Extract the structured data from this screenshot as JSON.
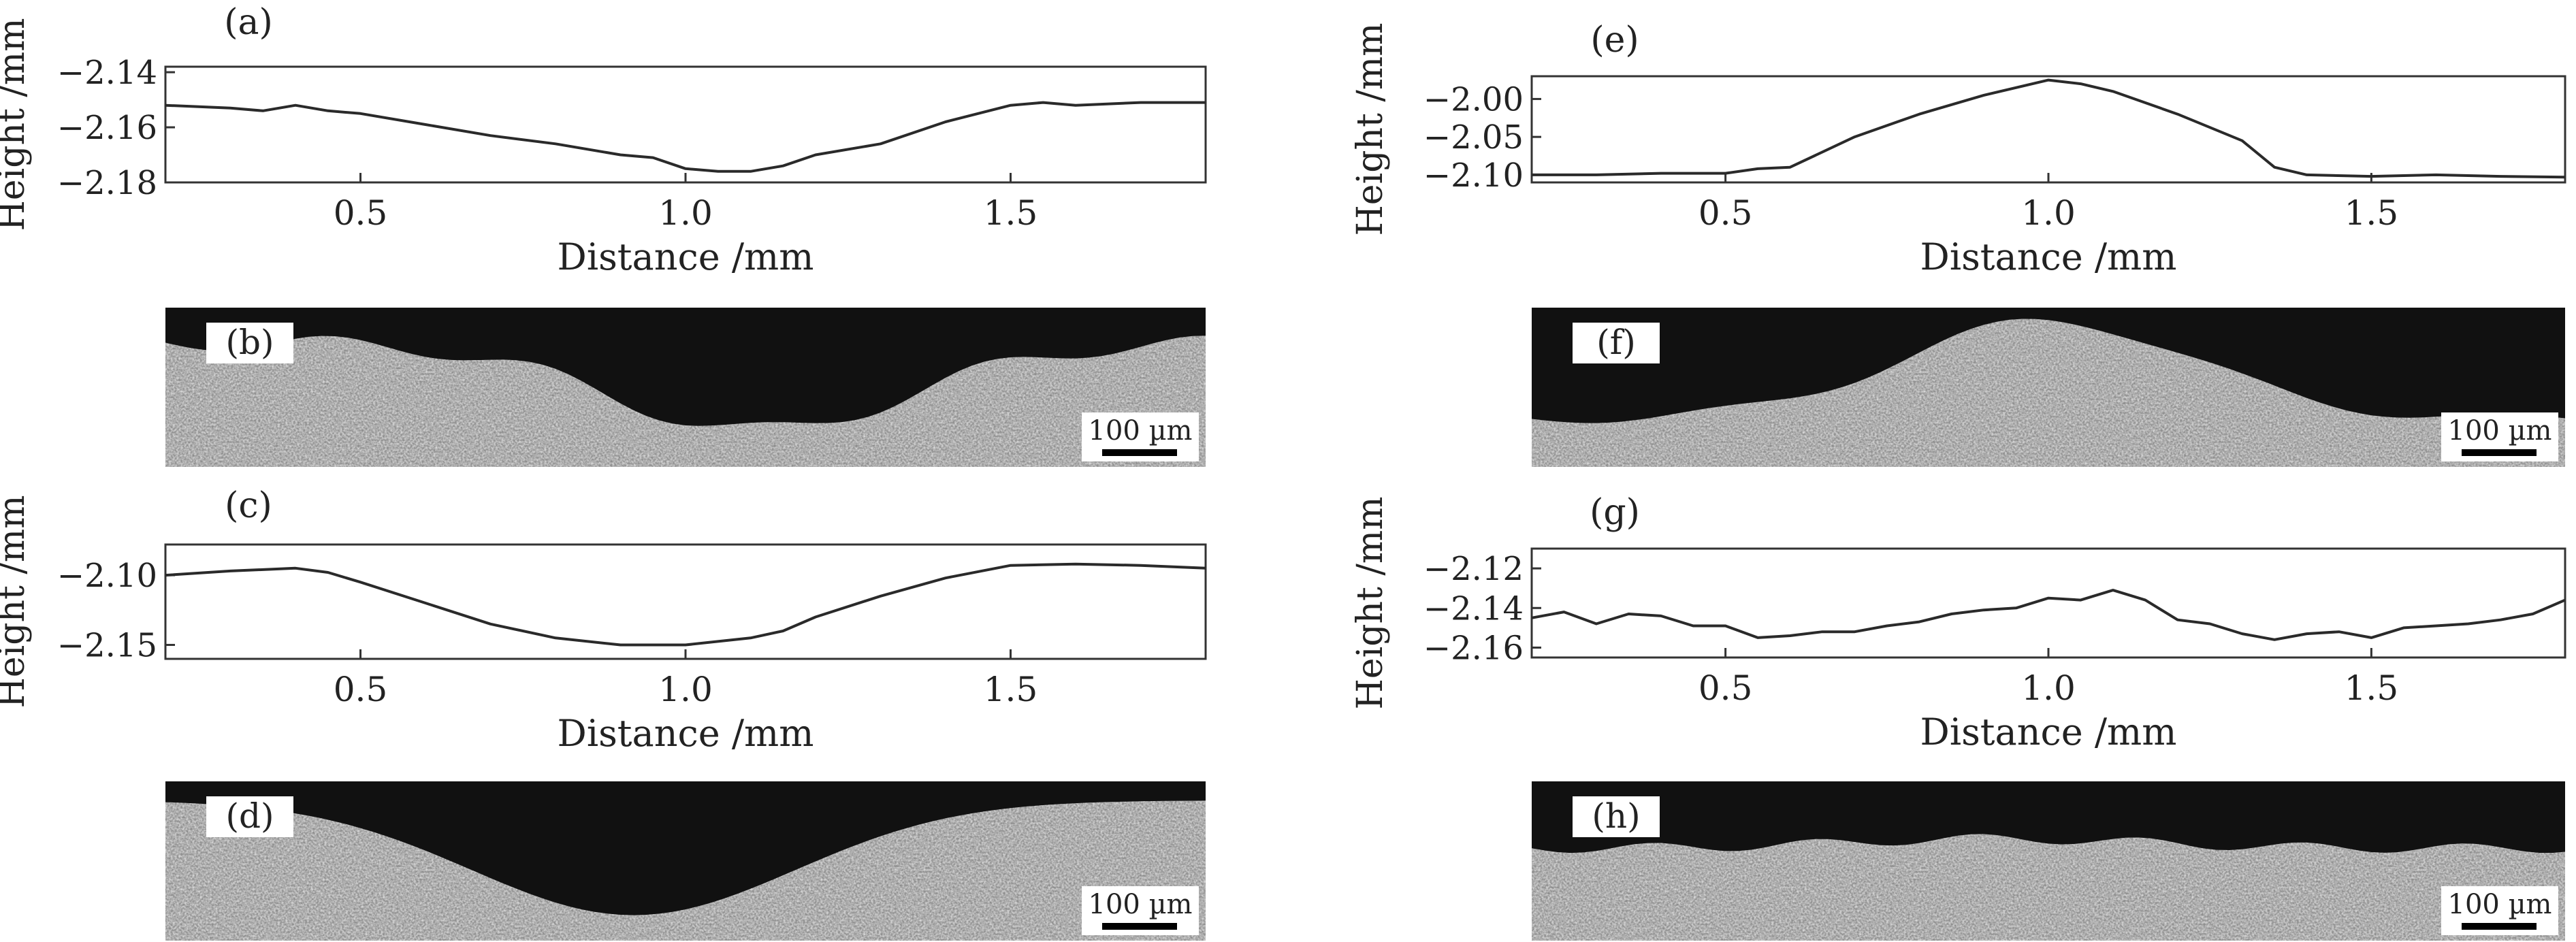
{
  "figure": {
    "panels": [
      {
        "id": "a",
        "label": "(a)",
        "type": "line",
        "xlabel": "Distance /mm",
        "ylabel": "Height /mm",
        "xlim": [
          0.2,
          1.8
        ],
        "ylim": [
          -2.18,
          -2.138
        ],
        "xticks": [
          0.5,
          1.0,
          1.5
        ],
        "yticks": [
          -2.14,
          -2.16,
          -2.18
        ],
        "xtick_labels": [
          "0.5",
          "1.0",
          "1.5"
        ],
        "ytick_labels": [
          "−2.14",
          "−2.16",
          "−2.18"
        ],
        "x": [
          0.2,
          0.3,
          0.35,
          0.4,
          0.45,
          0.5,
          0.6,
          0.7,
          0.8,
          0.9,
          0.95,
          1.0,
          1.05,
          1.1,
          1.15,
          1.2,
          1.3,
          1.4,
          1.5,
          1.55,
          1.6,
          1.7,
          1.8
        ],
        "y": [
          -2.152,
          -2.153,
          -2.154,
          -2.152,
          -2.154,
          -2.155,
          -2.159,
          -2.163,
          -2.166,
          -2.17,
          -2.171,
          -2.175,
          -2.176,
          -2.176,
          -2.174,
          -2.17,
          -2.166,
          -2.158,
          -2.152,
          -2.151,
          -2.152,
          -2.151,
          -2.151
        ]
      },
      {
        "id": "c",
        "label": "(c)",
        "type": "line",
        "xlabel": "Distance /mm",
        "ylabel": "Height /mm",
        "xlim": [
          0.2,
          1.8
        ],
        "ylim": [
          -2.16,
          -2.078
        ],
        "xticks": [
          0.5,
          1.0,
          1.5
        ],
        "yticks": [
          -2.1,
          -2.15
        ],
        "xtick_labels": [
          "0.5",
          "1.0",
          "1.5"
        ],
        "ytick_labels": [
          "−2.10",
          "−2.15"
        ],
        "x": [
          0.2,
          0.3,
          0.4,
          0.45,
          0.5,
          0.6,
          0.7,
          0.8,
          0.9,
          1.0,
          1.1,
          1.15,
          1.2,
          1.3,
          1.4,
          1.5,
          1.6,
          1.7,
          1.8
        ],
        "y": [
          -2.1,
          -2.097,
          -2.095,
          -2.098,
          -2.105,
          -2.12,
          -2.135,
          -2.145,
          -2.15,
          -2.15,
          -2.145,
          -2.14,
          -2.13,
          -2.115,
          -2.102,
          -2.093,
          -2.092,
          -2.093,
          -2.095
        ]
      },
      {
        "id": "e",
        "label": "(e)",
        "type": "line",
        "xlabel": "Distance /mm",
        "ylabel": "Height /mm",
        "xlim": [
          0.2,
          1.8
        ],
        "ylim": [
          -2.11,
          -1.97
        ],
        "xticks": [
          0.5,
          1.0,
          1.5
        ],
        "yticks": [
          -2.0,
          -2.05,
          -2.1
        ],
        "xtick_labels": [
          "0.5",
          "1.0",
          "1.5"
        ],
        "ytick_labels": [
          "−2.00",
          "−2.05",
          "−2.10"
        ],
        "x": [
          0.2,
          0.3,
          0.4,
          0.5,
          0.55,
          0.6,
          0.7,
          0.8,
          0.9,
          1.0,
          1.05,
          1.1,
          1.2,
          1.3,
          1.35,
          1.4,
          1.5,
          1.6,
          1.7,
          1.8
        ],
        "y": [
          -2.1,
          -2.1,
          -2.098,
          -2.098,
          -2.092,
          -2.09,
          -2.05,
          -2.02,
          -1.995,
          -1.975,
          -1.98,
          -1.99,
          -2.02,
          -2.055,
          -2.09,
          -2.1,
          -2.102,
          -2.1,
          -2.102,
          -2.103
        ]
      },
      {
        "id": "g",
        "label": "(g)",
        "type": "line",
        "xlabel": "Distance /mm",
        "ylabel": "Height /mm",
        "xlim": [
          0.2,
          1.8
        ],
        "ylim": [
          -2.165,
          -2.11
        ],
        "xticks": [
          0.5,
          1.0,
          1.5
        ],
        "yticks": [
          -2.12,
          -2.14,
          -2.16
        ],
        "xtick_labels": [
          "0.5",
          "1.0",
          "1.5"
        ],
        "ytick_labels": [
          "−2.12",
          "−2.14",
          "−2.16"
        ],
        "x": [
          0.2,
          0.25,
          0.3,
          0.35,
          0.4,
          0.45,
          0.5,
          0.55,
          0.6,
          0.65,
          0.7,
          0.75,
          0.8,
          0.85,
          0.9,
          0.95,
          1.0,
          1.05,
          1.1,
          1.15,
          1.2,
          1.25,
          1.3,
          1.35,
          1.4,
          1.45,
          1.5,
          1.55,
          1.6,
          1.65,
          1.7,
          1.75,
          1.8
        ],
        "y": [
          -2.145,
          -2.142,
          -2.148,
          -2.143,
          -2.144,
          -2.149,
          -2.149,
          -2.155,
          -2.154,
          -2.152,
          -2.152,
          -2.149,
          -2.147,
          -2.143,
          -2.141,
          -2.14,
          -2.135,
          -2.136,
          -2.131,
          -2.136,
          -2.146,
          -2.148,
          -2.153,
          -2.156,
          -2.153,
          -2.152,
          -2.155,
          -2.15,
          -2.149,
          -2.148,
          -2.146,
          -2.143,
          -2.136
        ]
      }
    ],
    "images": [
      {
        "id": "b",
        "label": "(b)",
        "scale_label": "100 µm",
        "profile": "valley"
      },
      {
        "id": "d",
        "label": "(d)",
        "scale_label": "100 µm",
        "profile": "deep-valley"
      },
      {
        "id": "f",
        "label": "(f)",
        "scale_label": "100 µm",
        "profile": "peak"
      },
      {
        "id": "h",
        "label": "(h)",
        "scale_label": "100 µm",
        "profile": "flat"
      }
    ]
  }
}
